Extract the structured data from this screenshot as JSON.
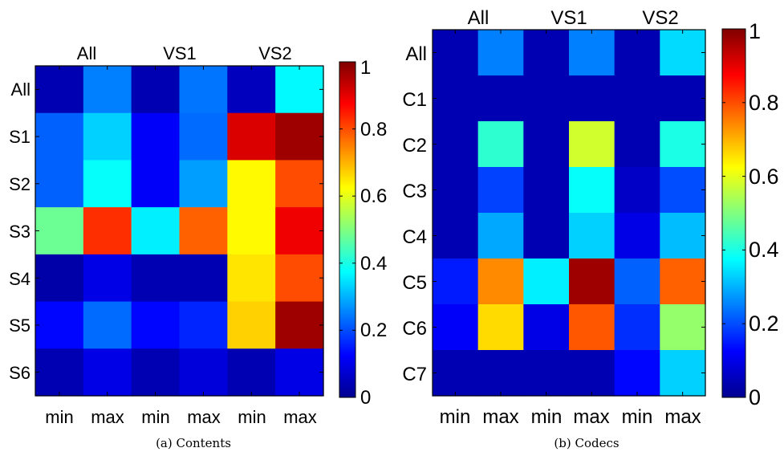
{
  "colormap": "jet",
  "chart_data": [
    {
      "type": "heatmap",
      "caption": "(a)  Contents",
      "group_labels": [
        "All",
        "VS1",
        "VS2"
      ],
      "x_tick_labels": [
        "min",
        "max",
        "min",
        "max",
        "min",
        "max"
      ],
      "y_tick_labels": [
        "All",
        "S1",
        "S2",
        "S3",
        "S4",
        "S5",
        "S6"
      ],
      "colorbar": {
        "ticks": [
          "0",
          "0.2",
          "0.4",
          "0.6",
          "0.8",
          "1"
        ],
        "range": [
          0,
          1
        ]
      },
      "values": [
        [
          0.05,
          0.25,
          0.05,
          0.24,
          0.06,
          0.37
        ],
        [
          0.22,
          0.33,
          0.12,
          0.23,
          0.91,
          0.97
        ],
        [
          0.22,
          0.38,
          0.12,
          0.28,
          0.63,
          0.8
        ],
        [
          0.48,
          0.83,
          0.36,
          0.78,
          0.63,
          0.89
        ],
        [
          0.04,
          0.1,
          0.05,
          0.05,
          0.65,
          0.8
        ],
        [
          0.13,
          0.23,
          0.13,
          0.16,
          0.67,
          0.97
        ],
        [
          0.05,
          0.1,
          0.05,
          0.09,
          0.05,
          0.1
        ]
      ]
    },
    {
      "type": "heatmap",
      "caption": "(b)  Codecs",
      "group_labels": [
        "All",
        "VS1",
        "VS2"
      ],
      "x_tick_labels": [
        "min",
        "max",
        "min",
        "max",
        "min",
        "max"
      ],
      "y_tick_labels": [
        "All",
        "C1",
        "C2",
        "C3",
        "C4",
        "C5",
        "C6",
        "C7"
      ],
      "colorbar": {
        "ticks": [
          "0",
          "0.2",
          "0.4",
          "0.6",
          "0.8",
          "1"
        ],
        "range": [
          0,
          1
        ]
      },
      "values": [
        [
          0.05,
          0.25,
          0.05,
          0.25,
          0.05,
          0.34
        ],
        [
          0.05,
          0.05,
          0.05,
          0.05,
          0.05,
          0.05
        ],
        [
          0.05,
          0.42,
          0.05,
          0.58,
          0.05,
          0.4
        ],
        [
          0.05,
          0.19,
          0.05,
          0.38,
          0.07,
          0.2
        ],
        [
          0.05,
          0.29,
          0.05,
          0.33,
          0.1,
          0.31
        ],
        [
          0.15,
          0.74,
          0.36,
          0.97,
          0.22,
          0.78
        ],
        [
          0.12,
          0.66,
          0.1,
          0.79,
          0.17,
          0.52
        ],
        [
          0.05,
          0.05,
          0.05,
          0.05,
          0.13,
          0.33
        ]
      ]
    }
  ]
}
